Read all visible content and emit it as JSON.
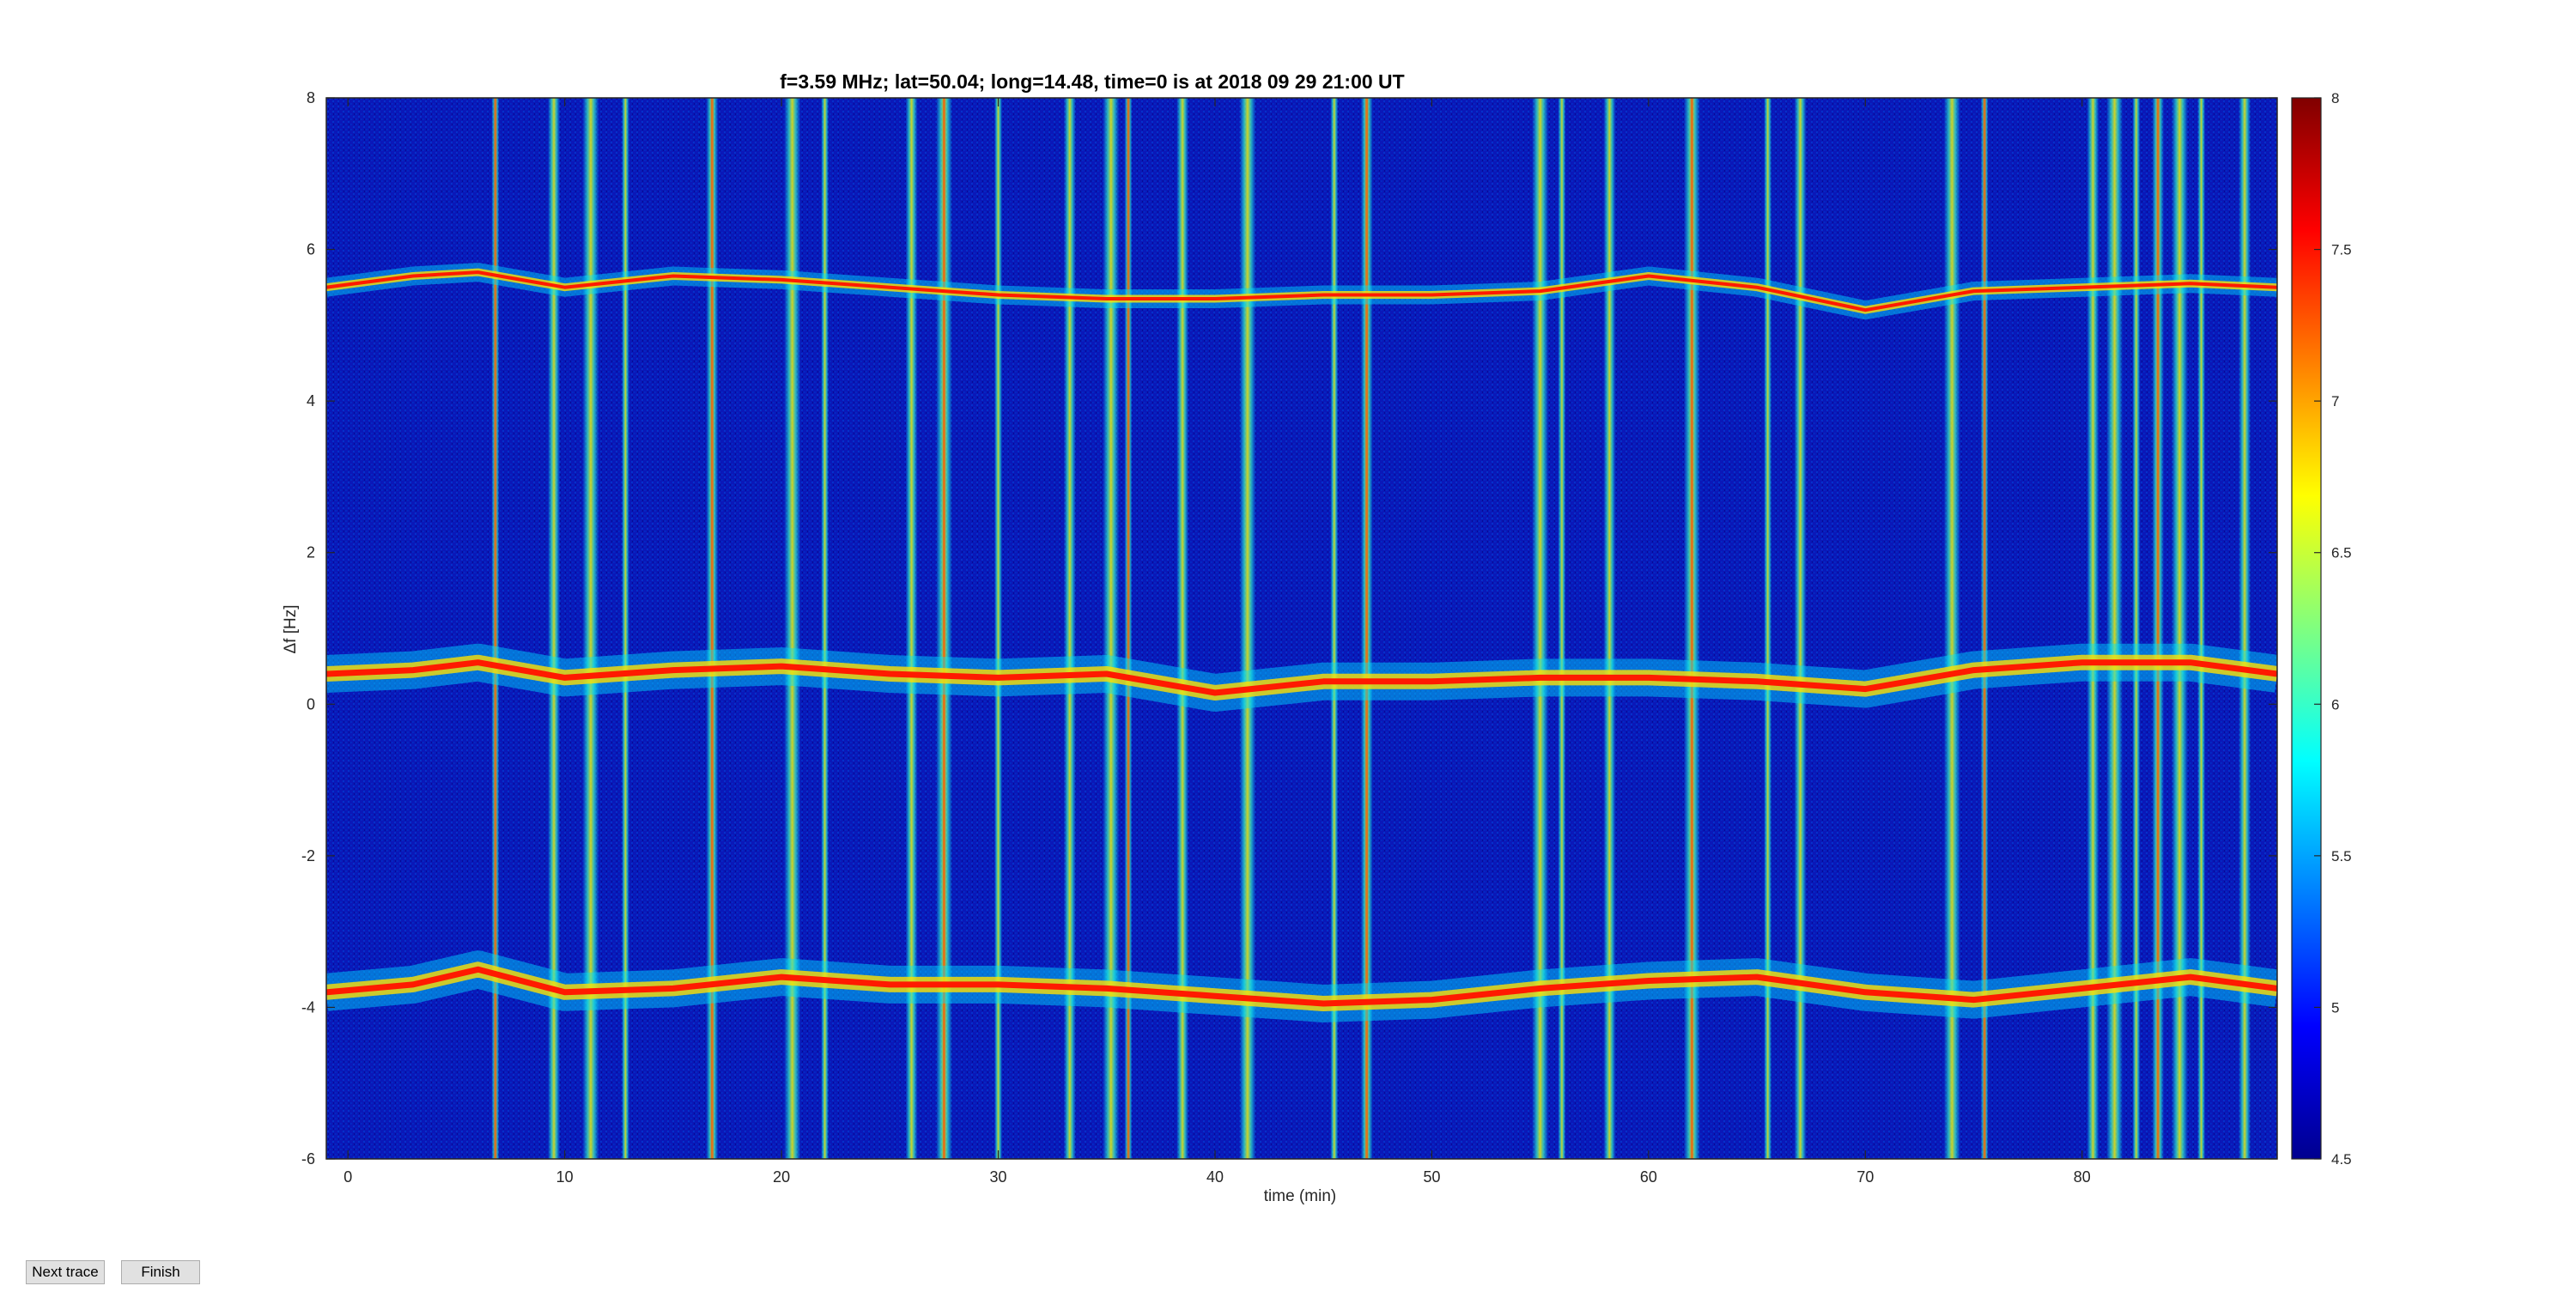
{
  "chart_data": {
    "type": "heatmap",
    "title": "f=3.59 MHz;  lat=50.04; long=14.48, time=0 is at 2018 09 29 21:00 UT",
    "xlabel": "time (min)",
    "ylabel": "Δf [Hz]",
    "xlim": [
      -1,
      89
    ],
    "ylim": [
      -6,
      8
    ],
    "xticks": [
      "0",
      "10",
      "20",
      "30",
      "40",
      "50",
      "60",
      "70",
      "80"
    ],
    "yticks": [
      "-6",
      "-4",
      "-2",
      "0",
      "2",
      "4",
      "6",
      "8"
    ],
    "colorbar": {
      "range": [
        4.5,
        8
      ],
      "ticks": [
        "4.5",
        "5",
        "5.5",
        "6",
        "6.5",
        "7",
        "7.5",
        "8"
      ],
      "colormap": "jet"
    },
    "series": [
      {
        "x": [
          -1,
          3,
          6,
          10,
          15,
          20,
          25,
          30,
          35,
          40,
          45,
          50,
          55,
          60,
          65,
          70,
          75,
          80,
          85,
          89
        ],
        "y": [
          5.5,
          5.65,
          5.7,
          5.5,
          5.65,
          5.6,
          5.5,
          5.4,
          5.35,
          5.35,
          5.4,
          5.4,
          5.45,
          5.65,
          5.5,
          5.2,
          5.45,
          5.5,
          5.55,
          5.5
        ]
      },
      {
        "x": [
          -1,
          3,
          6,
          10,
          15,
          20,
          25,
          30,
          35,
          40,
          45,
          50,
          55,
          60,
          65,
          70,
          75,
          80,
          85,
          89
        ],
        "y": [
          0.4,
          0.45,
          0.55,
          0.35,
          0.45,
          0.5,
          0.4,
          0.35,
          0.4,
          0.15,
          0.3,
          0.3,
          0.35,
          0.35,
          0.3,
          0.2,
          0.45,
          0.55,
          0.55,
          0.4
        ]
      },
      {
        "x": [
          -1,
          3,
          6,
          10,
          15,
          20,
          25,
          30,
          35,
          40,
          45,
          50,
          55,
          60,
          65,
          70,
          75,
          80,
          85,
          89
        ],
        "y": [
          -3.8,
          -3.7,
          -3.5,
          -3.8,
          -3.75,
          -3.6,
          -3.7,
          -3.7,
          -3.75,
          -3.85,
          -3.95,
          -3.9,
          -3.75,
          -3.65,
          -3.6,
          -3.8,
          -3.9,
          -3.75,
          -3.6,
          -3.75
        ]
      }
    ],
    "vertical_stripes_x": [
      6.8,
      9.5,
      11.2,
      12.8,
      16.8,
      20.5,
      22.0,
      26.0,
      27.5,
      30.0,
      33.3,
      35.2,
      36.0,
      38.5,
      41.5,
      45.5,
      47.0,
      55.0,
      56.0,
      58.2,
      62.0,
      65.5,
      67.0,
      74.0,
      75.5,
      80.5,
      81.5,
      82.5,
      83.5,
      84.5,
      85.5,
      87.5
    ]
  },
  "buttons": {
    "next_trace": "Next trace",
    "finish": "Finish"
  },
  "colors": {
    "colormap": [
      "#00008f",
      "#0000ff",
      "#0080ff",
      "#00ffff",
      "#80ff80",
      "#ffff00",
      "#ff8000",
      "#ff0000",
      "#800000"
    ]
  }
}
